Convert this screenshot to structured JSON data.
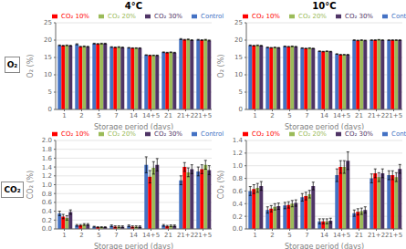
{
  "chart_data": [
    {
      "type": "bar",
      "title": "4°C",
      "annotations": [
        "O₂"
      ],
      "xlabel": "Storage period (days)",
      "ylabel": "O₂ (%)",
      "categories": [
        "1",
        "2",
        "5",
        "7",
        "14",
        "14+5",
        "21",
        "21+2",
        "21+5"
      ],
      "series": [
        {
          "name": "Control",
          "color": "#4472C4",
          "values": [
            18.5,
            18.8,
            19.0,
            18.0,
            17.8,
            15.7,
            16.5,
            20.3,
            20.1
          ],
          "errors": [
            0.1,
            0.15,
            0.12,
            0.1,
            0.08,
            0.08,
            0.1,
            0.15,
            0.12
          ]
        },
        {
          "name": "CO₂ 10%",
          "color": "#FF0000",
          "values": [
            18.4,
            18.1,
            18.9,
            17.9,
            17.7,
            15.6,
            16.4,
            20.1,
            20.0
          ],
          "errors": [
            0.1,
            0.12,
            0.12,
            0.1,
            0.08,
            0.08,
            0.1,
            0.12,
            0.12
          ]
        },
        {
          "name": "CO₂ 20%",
          "color": "#9BBB59",
          "values": [
            18.5,
            18.2,
            19.0,
            18.0,
            17.7,
            15.6,
            16.5,
            20.2,
            20.1
          ],
          "errors": [
            0.1,
            0.12,
            0.12,
            0.1,
            0.08,
            0.08,
            0.1,
            0.12,
            0.12
          ]
        },
        {
          "name": "CO₂ 30%",
          "color": "#4F3466",
          "values": [
            18.4,
            18.1,
            19.0,
            17.9,
            17.7,
            15.6,
            16.4,
            20.0,
            19.9
          ],
          "errors": [
            0.1,
            0.12,
            0.12,
            0.1,
            0.08,
            0.08,
            0.1,
            0.12,
            0.12
          ]
        }
      ],
      "ylim": [
        0,
        25
      ],
      "yticks": [
        0,
        5,
        10,
        15,
        20,
        25
      ],
      "grid": true,
      "legend": "upper left"
    },
    {
      "type": "bar",
      "title": "10°C",
      "xlabel": "Storage period (days)",
      "ylabel": "O₂ (%)",
      "categories": [
        "1",
        "2",
        "5",
        "7",
        "14",
        "14+5",
        "21",
        "21+2",
        "21+5"
      ],
      "series": [
        {
          "name": "Control",
          "color": "#4472C4",
          "values": [
            18.5,
            17.9,
            18.2,
            17.7,
            16.8,
            16.0,
            20.0,
            20.0,
            20.0
          ],
          "errors": [
            0.1,
            0.08,
            0.1,
            0.08,
            0.08,
            0.08,
            0.08,
            0.08,
            0.08
          ]
        },
        {
          "name": "CO₂ 10%",
          "color": "#FF0000",
          "values": [
            18.4,
            17.8,
            18.1,
            17.6,
            16.7,
            15.8,
            19.9,
            20.0,
            20.0
          ],
          "errors": [
            0.1,
            0.08,
            0.1,
            0.08,
            0.08,
            0.08,
            0.08,
            0.08,
            0.08
          ]
        },
        {
          "name": "CO₂ 20%",
          "color": "#9BBB59",
          "values": [
            18.5,
            17.9,
            18.2,
            17.7,
            16.8,
            15.8,
            20.0,
            20.1,
            20.0
          ],
          "errors": [
            0.1,
            0.08,
            0.1,
            0.08,
            0.08,
            0.08,
            0.08,
            0.08,
            0.08
          ]
        },
        {
          "name": "CO₂ 30%",
          "color": "#4F3466",
          "values": [
            18.4,
            17.8,
            18.1,
            17.6,
            16.7,
            15.8,
            19.9,
            20.0,
            20.0
          ],
          "errors": [
            0.1,
            0.08,
            0.1,
            0.08,
            0.08,
            0.08,
            0.08,
            0.08,
            0.08
          ]
        }
      ],
      "ylim": [
        0,
        25
      ],
      "yticks": [
        0,
        5,
        10,
        15,
        20,
        25
      ],
      "grid": true,
      "legend": "upper left"
    },
    {
      "type": "bar",
      "annotations": [
        "CO₂"
      ],
      "xlabel": "Storage period (days)",
      "ylabel": "CO₂ (%)",
      "categories": [
        "1",
        "2",
        "5",
        "7",
        "14",
        "14+5",
        "21",
        "21+2",
        "21+5"
      ],
      "series": [
        {
          "name": "Control",
          "color": "#4472C4",
          "values": [
            0.35,
            0.08,
            0.05,
            0.07,
            0.07,
            1.45,
            0.08,
            1.1,
            1.3
          ],
          "errors": [
            0.05,
            0.02,
            0.01,
            0.02,
            0.02,
            0.18,
            0.02,
            0.1,
            0.1
          ]
        },
        {
          "name": "CO₂ 10%",
          "color": "#FF0000",
          "values": [
            0.28,
            0.08,
            0.04,
            0.05,
            0.05,
            1.18,
            0.06,
            1.4,
            1.35
          ],
          "errors": [
            0.05,
            0.02,
            0.01,
            0.02,
            0.02,
            0.14,
            0.02,
            0.1,
            0.1
          ]
        },
        {
          "name": "CO₂ 20%",
          "color": "#9BBB59",
          "values": [
            0.25,
            0.1,
            0.04,
            0.05,
            0.05,
            1.38,
            0.07,
            1.28,
            1.45
          ],
          "errors": [
            0.05,
            0.02,
            0.01,
            0.02,
            0.02,
            0.14,
            0.02,
            0.1,
            0.1
          ]
        },
        {
          "name": "CO₂ 30%",
          "color": "#4F3466",
          "values": [
            0.38,
            0.1,
            0.04,
            0.05,
            0.05,
            1.45,
            0.07,
            1.35,
            1.33
          ],
          "errors": [
            0.05,
            0.02,
            0.01,
            0.02,
            0.02,
            0.14,
            0.02,
            0.1,
            0.1
          ]
        }
      ],
      "ylim": [
        0,
        2.0
      ],
      "yticks": [
        {
          "value": 0,
          "label": "0.0"
        },
        0.2,
        0.4,
        0.6,
        0.8,
        {
          "value": 1,
          "label": "1.0"
        },
        1.2,
        1.4,
        1.6,
        1.8,
        {
          "value": 2,
          "label": "2.0"
        }
      ],
      "grid": true,
      "legend": "upper left"
    },
    {
      "type": "bar",
      "xlabel": "Storage period (days)",
      "ylabel": "CO₂ (%)",
      "categories": [
        "1",
        "2",
        "5",
        "7",
        "14",
        "14+5",
        "21",
        "21+2",
        "21+5"
      ],
      "series": [
        {
          "name": "Control",
          "color": "#4472C4",
          "values": [
            0.6,
            0.3,
            0.37,
            0.5,
            0.12,
            0.85,
            0.25,
            0.8,
            0.85
          ],
          "errors": [
            0.07,
            0.05,
            0.05,
            0.06,
            0.04,
            0.1,
            0.05,
            0.07,
            0.07
          ]
        },
        {
          "name": "CO₂ 10%",
          "color": "#FF0000",
          "values": [
            0.63,
            0.32,
            0.38,
            0.52,
            0.12,
            0.98,
            0.27,
            0.88,
            0.85
          ],
          "errors": [
            0.07,
            0.05,
            0.05,
            0.06,
            0.04,
            0.1,
            0.05,
            0.07,
            0.07
          ]
        },
        {
          "name": "CO₂ 20%",
          "color": "#9BBB59",
          "values": [
            0.65,
            0.35,
            0.4,
            0.55,
            0.12,
            0.98,
            0.28,
            0.82,
            0.82
          ],
          "errors": [
            0.07,
            0.05,
            0.05,
            0.06,
            0.04,
            0.1,
            0.05,
            0.07,
            0.07
          ]
        },
        {
          "name": "CO₂ 30%",
          "color": "#4F3466",
          "values": [
            0.68,
            0.36,
            0.41,
            0.68,
            0.13,
            1.08,
            0.3,
            0.88,
            0.95
          ],
          "errors": [
            0.07,
            0.05,
            0.05,
            0.06,
            0.04,
            0.14,
            0.05,
            0.07,
            0.07
          ]
        }
      ],
      "ylim": [
        0,
        1.4
      ],
      "yticks": [
        {
          "value": 0,
          "label": "0.0"
        },
        0.2,
        0.4,
        0.6,
        0.8,
        {
          "value": 1,
          "label": "1.0"
        },
        1.2,
        1.4
      ],
      "grid": true,
      "legend": "upper left"
    }
  ]
}
